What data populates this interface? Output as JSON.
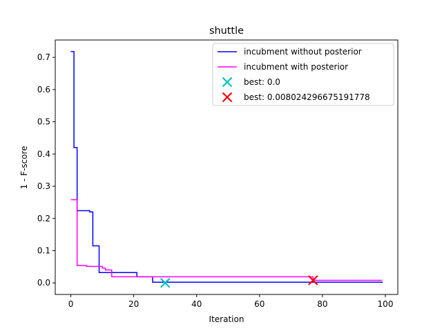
{
  "chart_data": {
    "type": "line",
    "title": "shuttle",
    "xlabel": "Iteration",
    "ylabel": "1 - F-score",
    "xlim": [
      -4.95,
      103.95
    ],
    "ylim": [
      -0.0359,
      0.7538
    ],
    "xticks": [
      0,
      20,
      40,
      60,
      80,
      100
    ],
    "yticks": [
      0.0,
      0.1,
      0.2,
      0.3,
      0.4,
      0.5,
      0.6,
      0.7
    ],
    "xtick_labels": [
      "0",
      "20",
      "40",
      "60",
      "80",
      "100"
    ],
    "ytick_labels": [
      "0.0",
      "0.1",
      "0.2",
      "0.3",
      "0.4",
      "0.5",
      "0.6",
      "0.7"
    ],
    "grid": false,
    "legend_position": "top-right",
    "series": [
      {
        "name": "incubment without posterior",
        "color": "#0000ff",
        "marker": "line",
        "x": [
          0,
          1,
          2,
          3,
          4,
          5,
          6,
          7,
          8,
          9,
          10,
          11,
          12,
          13,
          14,
          15,
          16,
          17,
          18,
          19,
          20,
          21,
          22,
          23,
          24,
          25,
          26,
          99
        ],
        "y": [
          0.718,
          0.42,
          0.224,
          0.224,
          0.224,
          0.224,
          0.22,
          0.115,
          0.115,
          0.032,
          0.032,
          0.032,
          0.032,
          0.032,
          0.032,
          0.032,
          0.032,
          0.032,
          0.032,
          0.032,
          0.032,
          0.019,
          0.019,
          0.019,
          0.019,
          0.019,
          0.002,
          0.0
        ]
      },
      {
        "name": "incubment with posterior",
        "color": "#ff00ff",
        "marker": "line",
        "x": [
          0,
          1,
          2,
          3,
          4,
          5,
          6,
          7,
          8,
          9,
          10,
          11,
          12,
          13,
          14,
          15,
          24,
          76,
          77,
          99
        ],
        "y": [
          0.258,
          0.258,
          0.054,
          0.054,
          0.054,
          0.051,
          0.051,
          0.051,
          0.051,
          0.051,
          0.046,
          0.04,
          0.04,
          0.019,
          0.019,
          0.019,
          0.019,
          0.019,
          0.008,
          0.008
        ]
      },
      {
        "name": "best: 0.0",
        "color": "#00bfbf",
        "marker": "x",
        "x": [
          30
        ],
        "y": [
          0.0
        ]
      },
      {
        "name": "best: 0.008024296675191778",
        "color": "#ff0000",
        "marker": "x",
        "x": [
          77
        ],
        "y": [
          0.008
        ]
      }
    ]
  }
}
